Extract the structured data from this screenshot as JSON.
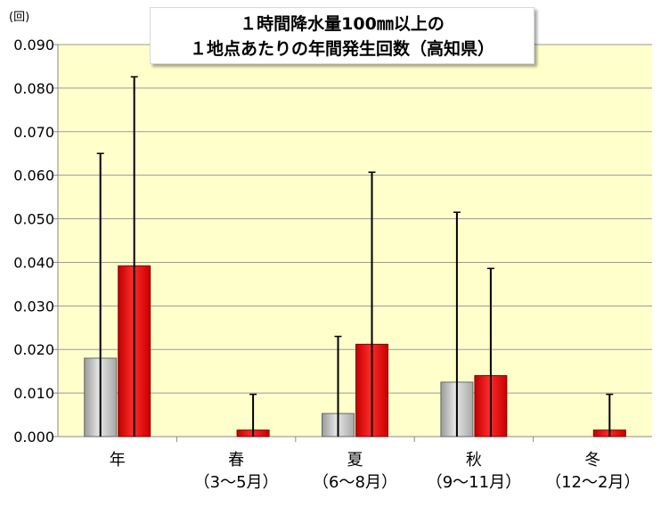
{
  "chart_data": {
    "type": "bar",
    "title_lines": [
      "１時間降水量100㎜以上の",
      "１地点あたりの年間発生回数（高知県）"
    ],
    "y_unit": "(回)",
    "ylim": [
      0,
      0.09
    ],
    "y_ticks": [
      "0.000",
      "0.010",
      "0.020",
      "0.030",
      "0.040",
      "0.050",
      "0.060",
      "0.070",
      "0.080",
      "0.090"
    ],
    "grid": true,
    "categories": [
      [
        "年"
      ],
      [
        "春",
        "（3～5月）"
      ],
      [
        "夏",
        "（6～8月）"
      ],
      [
        "秋",
        "（9～11月）"
      ],
      [
        "冬",
        "（12～2月）"
      ]
    ],
    "series": [
      {
        "values": [
          0.018,
          0.0,
          0.0053,
          0.0125,
          0.0
        ],
        "error_top": [
          0.065,
          null,
          0.023,
          0.0515,
          null
        ],
        "color": "#c0c0c0"
      },
      {
        "values": [
          0.0392,
          0.0015,
          0.0212,
          0.014,
          0.0015
        ],
        "error_top": [
          0.0826,
          0.0097,
          0.0607,
          0.0386,
          0.0097
        ],
        "color": "#ee1111"
      }
    ],
    "plot_background": "#ffffcc"
  }
}
